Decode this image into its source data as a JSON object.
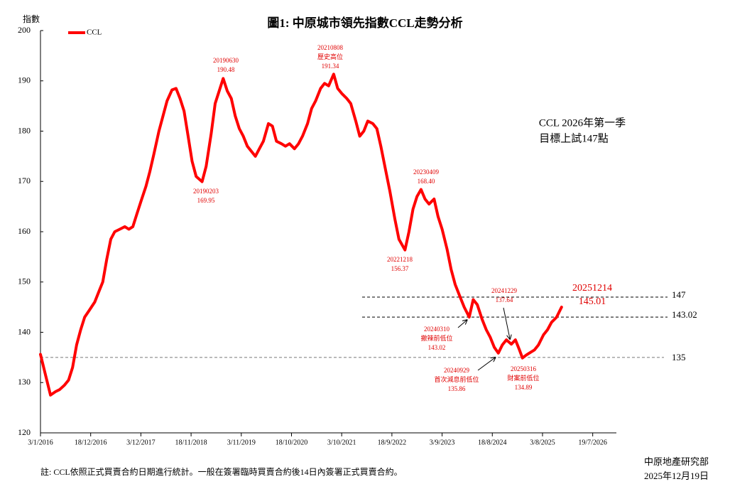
{
  "chart_data": {
    "type": "line",
    "title": "圖1: 中原城市領先指數CCL走勢分析",
    "y_label": "指數",
    "xlim": [
      "2016-01-03",
      "2026-12-31"
    ],
    "xticks": [
      {
        "value": "2016-01-03",
        "label": "3/1/2016"
      },
      {
        "value": "2016-12-18",
        "label": "18/12/2016"
      },
      {
        "value": "2017-12-03",
        "label": "3/12/2017"
      },
      {
        "value": "2018-11-18",
        "label": "18/11/2018"
      },
      {
        "value": "2019-11-03",
        "label": "3/11/2019"
      },
      {
        "value": "2020-10-18",
        "label": "18/10/2020"
      },
      {
        "value": "2021-10-03",
        "label": "3/10/2021"
      },
      {
        "value": "2022-09-18",
        "label": "18/9/2022"
      },
      {
        "value": "2023-09-03",
        "label": "3/9/2023"
      },
      {
        "value": "2024-08-18",
        "label": "18/8/2024"
      },
      {
        "value": "2025-08-03",
        "label": "3/8/2025"
      },
      {
        "value": "2026-07-19",
        "label": "19/7/2026"
      }
    ],
    "ylim": [
      120,
      200
    ],
    "yticks": [
      120,
      130,
      140,
      150,
      160,
      170,
      180,
      190,
      200
    ],
    "grid": false,
    "legend": "top-left",
    "x": [
      "2016-01-03",
      "2016-02-07",
      "2016-03-13",
      "2016-04-17",
      "2016-05-15",
      "2016-06-19",
      "2016-07-17",
      "2016-08-14",
      "2016-09-11",
      "2016-10-09",
      "2016-11-06",
      "2016-12-11",
      "2017-01-15",
      "2017-02-12",
      "2017-03-12",
      "2017-04-09",
      "2017-05-07",
      "2017-06-04",
      "2017-07-09",
      "2017-08-13",
      "2017-09-10",
      "2017-10-08",
      "2017-11-05",
      "2017-12-03",
      "2018-01-07",
      "2018-02-04",
      "2018-03-04",
      "2018-04-08",
      "2018-05-06",
      "2018-06-03",
      "2018-07-08",
      "2018-08-05",
      "2018-09-02",
      "2018-09-30",
      "2018-10-28",
      "2018-11-25",
      "2018-12-23",
      "2019-02-03",
      "2019-03-03",
      "2019-04-07",
      "2019-05-05",
      "2019-06-02",
      "2019-06-30",
      "2019-07-28",
      "2019-08-25",
      "2019-09-22",
      "2019-10-20",
      "2019-11-17",
      "2019-12-15",
      "2020-01-12",
      "2020-02-09",
      "2020-03-08",
      "2020-04-05",
      "2020-05-10",
      "2020-06-07",
      "2020-07-05",
      "2020-08-09",
      "2020-09-06",
      "2020-10-04",
      "2020-11-08",
      "2020-12-06",
      "2021-01-03",
      "2021-02-07",
      "2021-03-07",
      "2021-04-04",
      "2021-05-09",
      "2021-06-06",
      "2021-07-04",
      "2021-08-08",
      "2021-09-05",
      "2021-10-03",
      "2021-11-07",
      "2021-12-05",
      "2022-01-09",
      "2022-02-06",
      "2022-03-06",
      "2022-04-03",
      "2022-05-08",
      "2022-06-05",
      "2022-07-03",
      "2022-08-07",
      "2022-09-04",
      "2022-10-09",
      "2022-11-06",
      "2022-12-18",
      "2023-01-15",
      "2023-02-12",
      "2023-03-12",
      "2023-04-09",
      "2023-05-07",
      "2023-06-04",
      "2023-07-09",
      "2023-08-06",
      "2023-09-03",
      "2023-10-08",
      "2023-11-05",
      "2023-12-03",
      "2024-01-07",
      "2024-02-04",
      "2024-03-10",
      "2024-04-07",
      "2024-05-05",
      "2024-06-09",
      "2024-07-07",
      "2024-08-04",
      "2024-09-01",
      "2024-09-29",
      "2024-10-27",
      "2024-11-24",
      "2024-12-29",
      "2025-01-26",
      "2025-02-23",
      "2025-03-16",
      "2025-04-13",
      "2025-05-11",
      "2025-06-08",
      "2025-07-06",
      "2025-08-10",
      "2025-09-07",
      "2025-10-05",
      "2025-11-09",
      "2025-12-14"
    ],
    "series": [
      {
        "name": "CCL",
        "color": "#ff0000",
        "values": [
          135.6,
          131.5,
          127.5,
          128.2,
          128.6,
          129.5,
          130.5,
          133,
          137.5,
          140.5,
          143,
          144.5,
          146,
          148,
          150,
          154.5,
          158.5,
          160,
          160.5,
          161,
          160.5,
          161,
          163.5,
          166,
          169,
          172,
          175.5,
          180,
          183,
          186,
          188.2,
          188.5,
          186.5,
          184,
          179,
          174,
          171,
          169.95,
          173,
          179.5,
          185.5,
          188,
          190.48,
          188,
          186.5,
          183,
          180.5,
          179,
          177,
          176,
          175,
          176.5,
          178,
          181.5,
          181,
          178,
          177.5,
          177,
          177.5,
          176.5,
          177.5,
          179,
          181.5,
          184.5,
          186,
          188.5,
          189.5,
          189,
          191.34,
          188.5,
          187.5,
          186.5,
          185.5,
          182,
          179,
          180,
          182,
          181.5,
          180.5,
          177,
          172,
          168,
          162.5,
          158.5,
          156.37,
          160,
          164.5,
          167,
          168.4,
          166.5,
          165.5,
          166.5,
          163,
          160.5,
          156.5,
          152.5,
          149.5,
          147,
          145,
          143.02,
          146.5,
          145.5,
          142.5,
          140.5,
          139,
          137,
          135.86,
          137.5,
          138.5,
          137.64,
          138.5,
          136.5,
          134.89,
          135.5,
          136,
          136.5,
          137.5,
          139.5,
          140.5,
          142,
          143,
          145.01
        ]
      }
    ],
    "reference_lines": [
      147,
      143.02,
      135
    ],
    "annotations": [
      {
        "x": "2019-02-03",
        "date_label": "20190203",
        "value": 169.95
      },
      {
        "x": "2019-06-30",
        "date_label": "20190630",
        "value": 190.48
      },
      {
        "x": "2021-08-08",
        "date_label": "20210808",
        "note": "歷史高位",
        "value": 191.34
      },
      {
        "x": "2022-12-18",
        "date_label": "20221218",
        "value": 156.37
      },
      {
        "x": "2023-04-09",
        "date_label": "20230409",
        "value": 168.4,
        "value_label": "168.40"
      },
      {
        "x": "2024-03-10",
        "date_label": "20240310",
        "note": "撤辣前低位",
        "value": 143.02
      },
      {
        "x": "2024-12-29",
        "date_label": "20241229",
        "value": 137.64
      },
      {
        "x": "2024-09-29",
        "date_label": "20240929",
        "note": "首次減息前低位",
        "value": 135.86
      },
      {
        "x": "2025-03-16",
        "date_label": "20250316",
        "note": "財案前低位",
        "value": 134.89
      },
      {
        "x": "2025-12-14",
        "date_label": "20251214",
        "value": 145.01
      }
    ],
    "target_note": [
      "CCL 2026年第一季",
      "目標上試147點"
    ],
    "footnote": "註: CCL依照正式買賣合約日期進行統計。一般在簽署臨時買賣合約後14日內簽署正式買賣合約。",
    "source": [
      "中原地產研究部",
      "2025年12月19日"
    ]
  }
}
